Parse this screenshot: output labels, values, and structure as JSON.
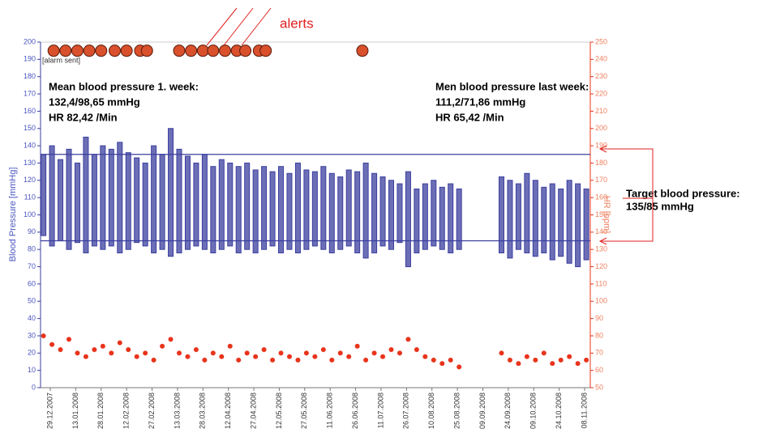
{
  "chart_data": {
    "type": "range-scatter",
    "y_label": "Blood Pressure [mmHg]",
    "y2_label": "HR [bpm]",
    "ylim": [
      0,
      200
    ],
    "yticks": [
      0,
      10,
      20,
      30,
      40,
      50,
      60,
      70,
      80,
      90,
      100,
      110,
      120,
      130,
      140,
      150,
      160,
      170,
      180,
      190,
      200
    ],
    "y2lim": [
      50,
      250
    ],
    "y2ticks": [
      50,
      60,
      70,
      80,
      90,
      100,
      110,
      120,
      130,
      140,
      150,
      160,
      170,
      180,
      190,
      200,
      210,
      220,
      230,
      240,
      250
    ],
    "xticks": [
      "29.12.2007",
      "13.01.2008",
      "28.01.2008",
      "12.02.2008",
      "27.02.2008",
      "13.03.2008",
      "28.03.2008",
      "12.04.2008",
      "27.04.2008",
      "12.05.2008",
      "27.05.2008",
      "11.06.2008",
      "26.06.2008",
      "11.07.2008",
      "26.07.2008",
      "10.08.2008",
      "25.08.2008",
      "09.09.2008",
      "24.09.2008",
      "09.10.2008",
      "24.10.2008",
      "08.11.2008"
    ],
    "x": [
      "25.12.2007",
      "30.12.2007",
      "04.01.2008",
      "09.01.2008",
      "14.01.2008",
      "19.01.2008",
      "24.01.2008",
      "29.01.2008",
      "03.02.2008",
      "08.02.2008",
      "13.02.2008",
      "18.02.2008",
      "23.02.2008",
      "28.02.2008",
      "04.03.2008",
      "09.03.2008",
      "14.03.2008",
      "19.03.2008",
      "24.03.2008",
      "29.03.2008",
      "03.04.2008",
      "08.04.2008",
      "13.04.2008",
      "18.04.2008",
      "23.04.2008",
      "28.04.2008",
      "03.05.2008",
      "08.05.2008",
      "13.05.2008",
      "18.05.2008",
      "23.05.2008",
      "28.05.2008",
      "02.06.2008",
      "07.06.2008",
      "12.06.2008",
      "17.06.2008",
      "22.06.2008",
      "27.06.2008",
      "02.07.2008",
      "07.07.2008",
      "12.07.2008",
      "17.07.2008",
      "22.07.2008",
      "27.07.2008",
      "01.08.2008",
      "06.08.2008",
      "11.08.2008",
      "16.08.2008",
      "21.08.2008",
      "26.08.2008",
      "20.09.2008",
      "25.09.2008",
      "30.09.2008",
      "05.10.2008",
      "10.10.2008",
      "15.10.2008",
      "20.10.2008",
      "25.10.2008",
      "30.10.2008",
      "04.11.2008",
      "09.11.2008"
    ],
    "series": [
      {
        "type": "range",
        "color": "#3b3f9e",
        "high": [
          135,
          140,
          132,
          138,
          130,
          145,
          135,
          140,
          138,
          142,
          136,
          133,
          130,
          140,
          135,
          150,
          138,
          134,
          130,
          135,
          128,
          132,
          130,
          128,
          130,
          126,
          128,
          125,
          128,
          124,
          130,
          126,
          125,
          128,
          124,
          122,
          126,
          125,
          130,
          124,
          122,
          120,
          118,
          125,
          115,
          118,
          120,
          116,
          118,
          115,
          122,
          120,
          118,
          124,
          120,
          116,
          118,
          115,
          120,
          118,
          115
        ],
        "low": [
          88,
          82,
          85,
          80,
          84,
          78,
          82,
          80,
          82,
          78,
          80,
          84,
          82,
          78,
          80,
          76,
          78,
          80,
          82,
          80,
          78,
          80,
          82,
          78,
          80,
          78,
          80,
          82,
          78,
          80,
          78,
          80,
          82,
          80,
          78,
          80,
          82,
          78,
          75,
          78,
          82,
          80,
          84,
          70,
          78,
          80,
          82,
          80,
          78,
          80,
          78,
          75,
          80,
          78,
          76,
          78,
          74,
          76,
          72,
          70,
          74
        ]
      },
      {
        "type": "scatter",
        "color": "#e8341c",
        "axis": "y2",
        "values": [
          80,
          75,
          72,
          78,
          70,
          68,
          72,
          74,
          70,
          76,
          72,
          68,
          70,
          66,
          74,
          78,
          70,
          68,
          72,
          66,
          70,
          68,
          74,
          66,
          70,
          68,
          72,
          66,
          70,
          68,
          66,
          70,
          68,
          72,
          66,
          70,
          68,
          74,
          66,
          70,
          68,
          72,
          70,
          78,
          72,
          68,
          66,
          64,
          66,
          62,
          70,
          66,
          64,
          68,
          66,
          70,
          64,
          66,
          68,
          64,
          66
        ]
      }
    ],
    "target_lines": [
      135,
      85
    ],
    "target_color": "#3b3f9e",
    "alerts": {
      "level": 195,
      "color": "#d9512c",
      "x": [
        "31.12.2007",
        "07.01.2008",
        "14.01.2008",
        "21.01.2008",
        "28.01.2008",
        "05.02.2008",
        "12.02.2008",
        "20.02.2008",
        "24.02.2008",
        "14.03.2008",
        "21.03.2008",
        "28.03.2008",
        "03.04.2008",
        "10.04.2008",
        "17.04.2008",
        "22.04.2008",
        "30.04.2008",
        "04.05.2008",
        "30.06.2008"
      ]
    },
    "annotations": {
      "alerts": "alerts",
      "alarm_sent": "[alarm sent]",
      "first_week": [
        "Mean blood pressure 1. week:",
        "132,4/98,65 mmHg",
        "HR 82,42 /Min"
      ],
      "last_week": [
        "Men blood pressure last week:",
        "111,2/71,86 mmHg",
        "HR 65,42 /Min"
      ],
      "target": [
        "Target blood pressure:",
        "135/85 mmHg"
      ]
    }
  }
}
